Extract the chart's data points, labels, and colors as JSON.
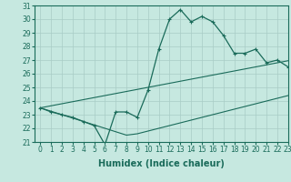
{
  "xlabel": "Humidex (Indice chaleur)",
  "bg_color": "#c6e8e0",
  "line_color": "#1a6b5a",
  "grid_color": "#a8ccc6",
  "x_data": [
    0,
    1,
    2,
    3,
    4,
    5,
    6,
    7,
    8,
    9,
    10,
    11,
    12,
    13,
    14,
    15,
    16,
    17,
    18,
    19,
    20,
    21,
    22,
    23
  ],
  "y_main": [
    23.5,
    23.2,
    23.0,
    22.8,
    22.5,
    22.2,
    20.8,
    23.2,
    23.2,
    22.8,
    24.8,
    27.8,
    30.0,
    30.7,
    29.8,
    30.2,
    29.8,
    28.8,
    27.5,
    27.5,
    27.8,
    26.8,
    27.0,
    26.5
  ],
  "y_trend1": [
    23.5,
    23.65,
    23.8,
    23.95,
    24.1,
    24.25,
    24.4,
    24.55,
    24.7,
    24.85,
    25.0,
    25.15,
    25.3,
    25.45,
    25.6,
    25.75,
    25.9,
    26.05,
    26.2,
    26.35,
    26.5,
    26.65,
    26.8,
    26.95
  ],
  "y_trend2": [
    23.5,
    23.25,
    23.0,
    22.75,
    22.5,
    22.25,
    22.0,
    21.75,
    21.5,
    21.6,
    21.8,
    22.0,
    22.2,
    22.4,
    22.6,
    22.8,
    23.0,
    23.2,
    23.4,
    23.6,
    23.8,
    24.0,
    24.2,
    24.4
  ],
  "ylim": [
    21,
    31
  ],
  "xlim": [
    -0.5,
    23
  ],
  "yticks": [
    21,
    22,
    23,
    24,
    25,
    26,
    27,
    28,
    29,
    30,
    31
  ],
  "xticks": [
    0,
    1,
    2,
    3,
    4,
    5,
    6,
    7,
    8,
    9,
    10,
    11,
    12,
    13,
    14,
    15,
    16,
    17,
    18,
    19,
    20,
    21,
    22,
    23
  ],
  "tick_fontsize": 5.5,
  "label_fontsize": 7,
  "lw_main": 0.9,
  "lw_trend": 0.8,
  "marker_size": 3.5
}
